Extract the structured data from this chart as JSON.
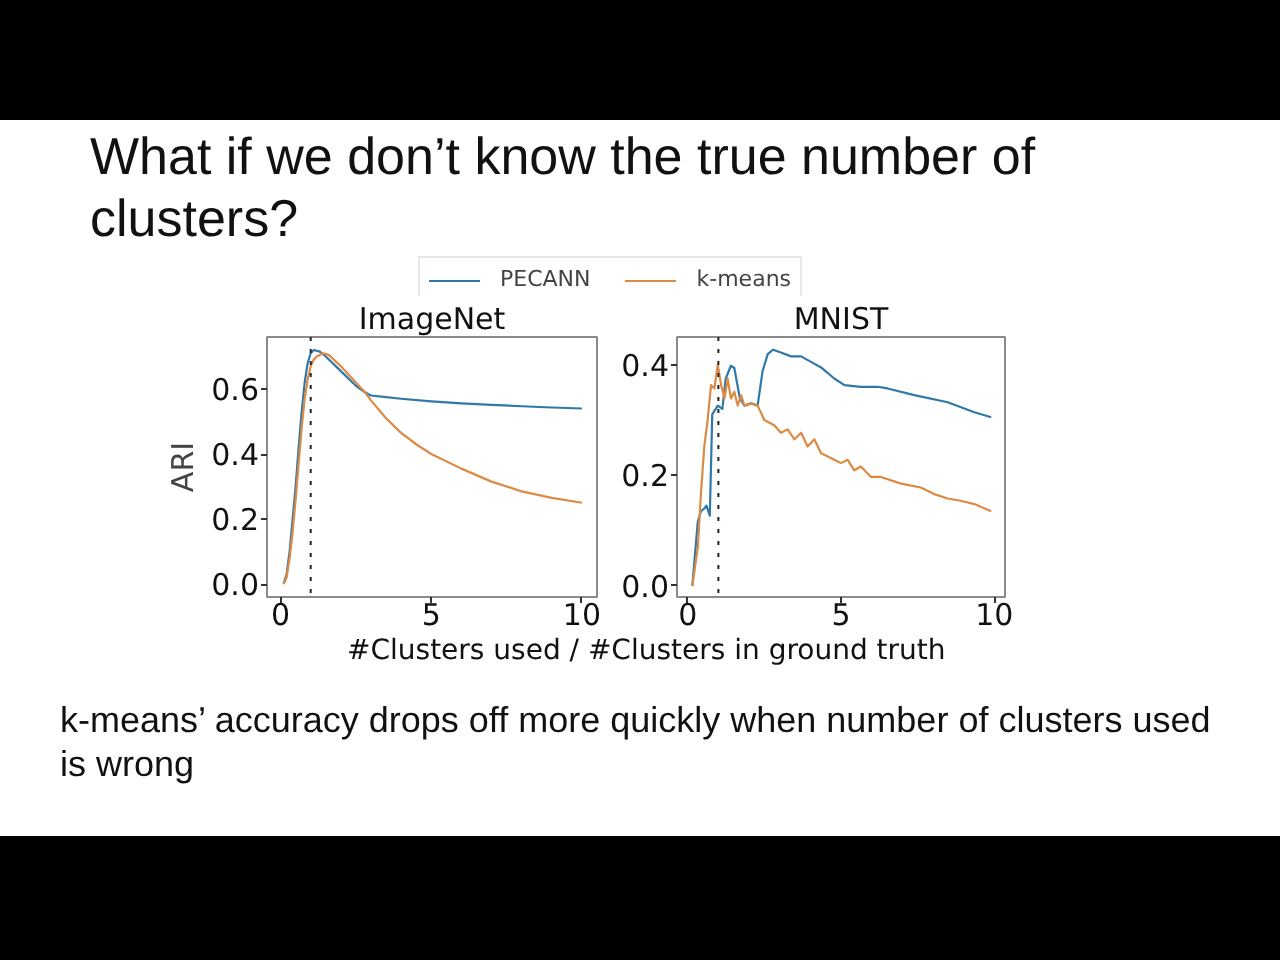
{
  "chart_data": [
    {
      "type": "line",
      "title": "ImageNet",
      "xlabel": "#Clusters used / #Clusters in ground truth",
      "ylabel": "ARI",
      "annotations": [
        "What if we don’t know the true number of clusters?",
        "k-means’ accuracy drops off more quickly when number of clusters used is wrong"
      ],
      "legend": "top",
      "xlim": [
        -0.45,
        10.5
      ],
      "ylim": [
        -0.04,
        0.76
      ],
      "xticks": [
        0,
        5,
        10
      ],
      "yticks": [
        {
          "value": 0,
          "label": "0.0"
        },
        {
          "value": 0.2,
          "label": "0.2"
        },
        {
          "value": 0.4,
          "label": "0.4"
        },
        {
          "value": 0.6,
          "label": "0.6"
        }
      ],
      "ref_lines": [
        {
          "axis": "x",
          "value": 1,
          "line_style": "dotted",
          "color": "#222222"
        }
      ],
      "series": [
        {
          "name": "PECANN",
          "color": "#2f78a8",
          "x": [
            0.1,
            0.2,
            0.3,
            0.4,
            0.5,
            0.6,
            0.7,
            0.8,
            0.9,
            1.0,
            1.1,
            1.3,
            1.5,
            2.0,
            2.5,
            2.8,
            3.0,
            3.5,
            4,
            5,
            6,
            7,
            8,
            9,
            10
          ],
          "values": [
            0.0,
            0.03,
            0.1,
            0.2,
            0.3,
            0.42,
            0.53,
            0.62,
            0.68,
            0.71,
            0.72,
            0.715,
            0.7,
            0.655,
            0.61,
            0.59,
            0.58,
            0.575,
            0.57,
            0.562,
            0.556,
            0.551,
            0.547,
            0.543,
            0.54
          ]
        },
        {
          "name": "k-means",
          "color": "#dd8a45",
          "x": [
            0.1,
            0.2,
            0.3,
            0.4,
            0.5,
            0.6,
            0.7,
            0.8,
            0.9,
            1.0,
            1.1,
            1.2,
            1.4,
            1.6,
            2.0,
            2.5,
            2.8,
            3.0,
            3.5,
            4.0,
            4.5,
            5,
            6,
            7,
            8,
            9,
            10
          ],
          "values": [
            0.0,
            0.02,
            0.08,
            0.16,
            0.26,
            0.37,
            0.48,
            0.57,
            0.63,
            0.67,
            0.69,
            0.7,
            0.71,
            0.705,
            0.67,
            0.62,
            0.59,
            0.565,
            0.51,
            0.465,
            0.43,
            0.4,
            0.355,
            0.315,
            0.285,
            0.265,
            0.25
          ]
        }
      ]
    },
    {
      "type": "line",
      "title": "MNIST",
      "xlim": [
        -0.35,
        10.35
      ],
      "ylim": [
        -0.02,
        0.45
      ],
      "xticks": [
        0,
        5,
        10
      ],
      "yticks": [
        {
          "value": 0,
          "label": "0.0"
        },
        {
          "value": 0.2,
          "label": "0.2"
        },
        {
          "value": 0.4,
          "label": "0.4"
        }
      ],
      "ref_lines": [
        {
          "axis": "x",
          "value": 1,
          "line_style": "dotted",
          "color": "#222222"
        }
      ],
      "series": [
        {
          "color": "#2f78a8",
          "x": [
            0.15,
            0.33,
            0.43,
            0.54,
            0.61,
            0.72,
            0.8,
            0.98,
            1.13,
            1.24,
            1.41,
            1.52,
            1.7,
            1.85,
            2.07,
            2.28,
            2.44,
            2.61,
            2.78,
            3.04,
            3.37,
            3.7,
            4.02,
            4.35,
            4.78,
            5.11,
            5.65,
            6.2,
            6.52,
            7.39,
            8.48,
            9.35,
            9.9
          ],
          "values": [
            0.0,
            0.117,
            0.135,
            0.14,
            0.145,
            0.127,
            0.31,
            0.326,
            0.32,
            0.375,
            0.398,
            0.394,
            0.339,
            0.326,
            0.33,
            0.326,
            0.388,
            0.419,
            0.427,
            0.422,
            0.415,
            0.415,
            0.405,
            0.395,
            0.375,
            0.363,
            0.36,
            0.36,
            0.357,
            0.345,
            0.332,
            0.314,
            0.305
          ]
        },
        {
          "color": "#dd8a45",
          "x": [
            0.15,
            0.33,
            0.43,
            0.54,
            0.65,
            0.76,
            0.87,
            0.98,
            1.09,
            1.2,
            1.3,
            1.41,
            1.52,
            1.63,
            1.74,
            1.85,
            2.07,
            2.28,
            2.5,
            2.83,
            3.04,
            3.26,
            3.48,
            3.7,
            3.91,
            4.13,
            4.35,
            4.57,
            4.78,
            5.0,
            5.22,
            5.43,
            5.65,
            5.98,
            6.3,
            6.96,
            7.6,
            8.04,
            8.48,
            8.9,
            9.35,
            9.9
          ],
          "values": [
            0.0,
            0.07,
            0.166,
            0.252,
            0.3,
            0.363,
            0.357,
            0.4,
            0.363,
            0.339,
            0.375,
            0.339,
            0.351,
            0.326,
            0.345,
            0.326,
            0.33,
            0.326,
            0.3,
            0.29,
            0.277,
            0.283,
            0.265,
            0.277,
            0.252,
            0.265,
            0.24,
            0.234,
            0.228,
            0.222,
            0.228,
            0.209,
            0.216,
            0.197,
            0.197,
            0.185,
            0.178,
            0.166,
            0.158,
            0.154,
            0.148,
            0.135
          ]
        }
      ]
    }
  ]
}
